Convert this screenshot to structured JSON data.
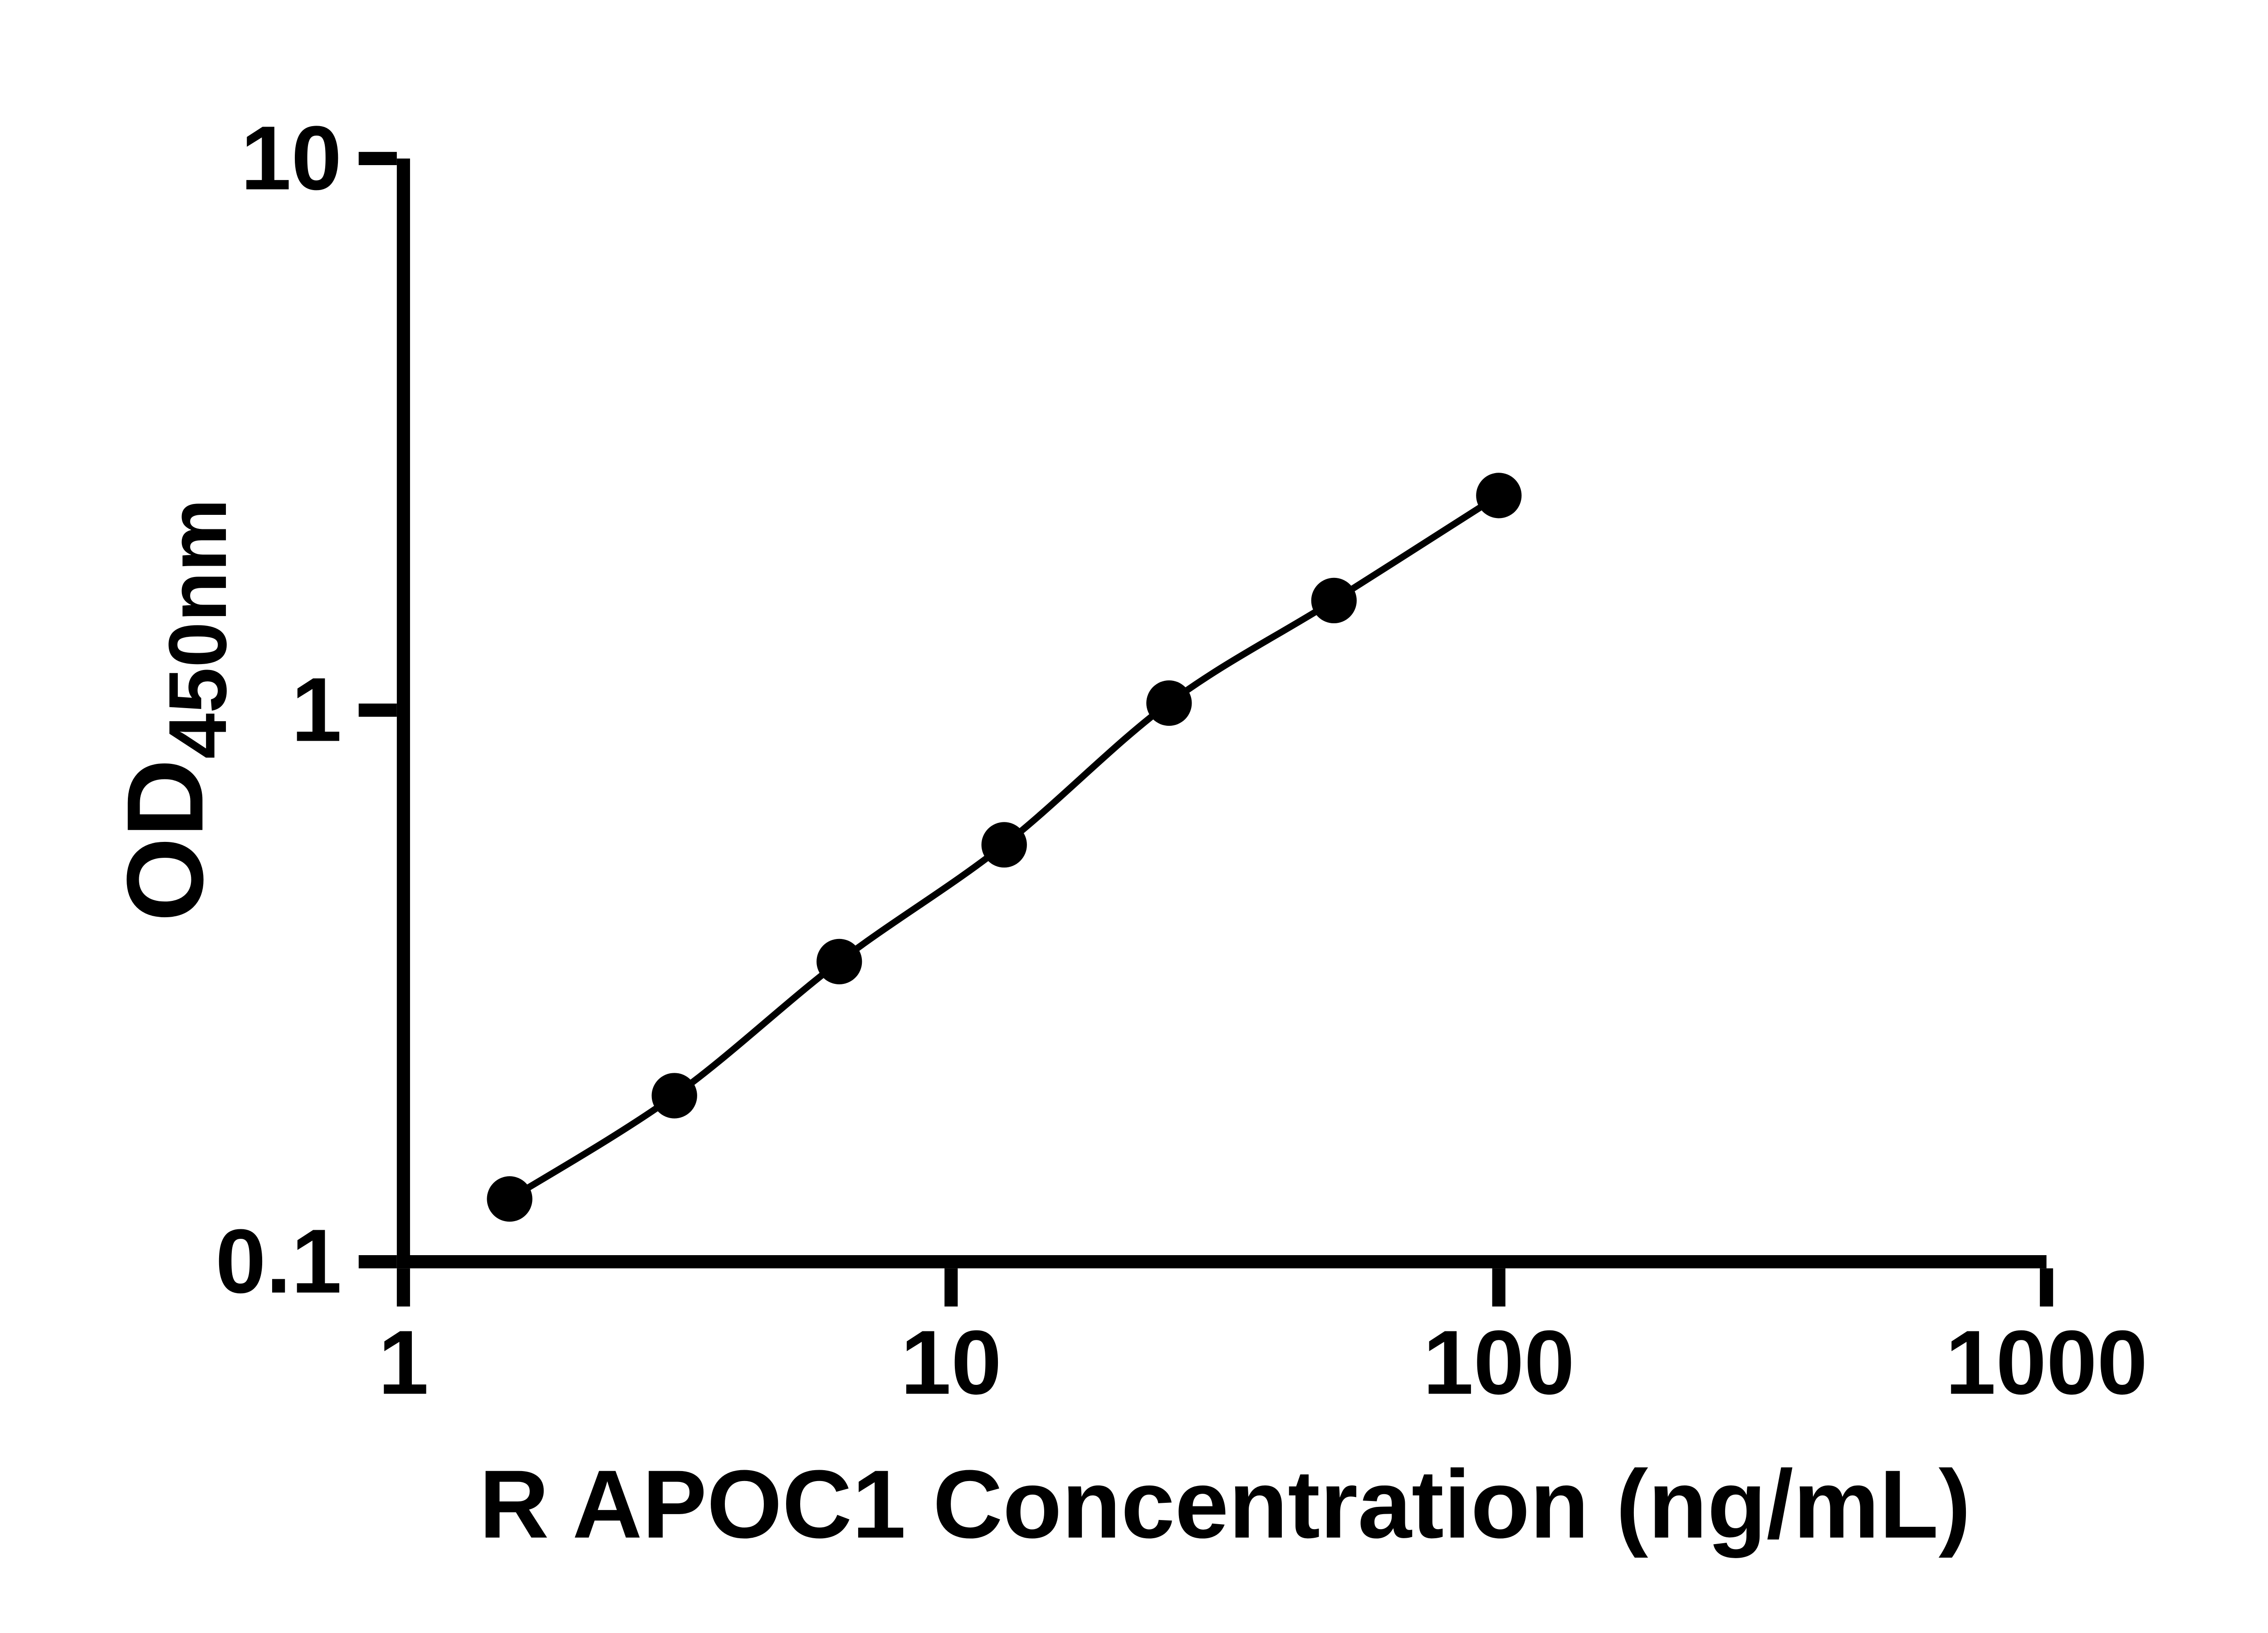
{
  "chart_data": {
    "type": "scatter",
    "title": "",
    "xlabel": "R APOC1 Concentration (ng/mL)",
    "ylabel": "OD450nm",
    "ylabel_main": "OD",
    "ylabel_sub": "450nm",
    "x_scale": "log10",
    "y_scale": "log10",
    "xlim": [
      1,
      1000
    ],
    "ylim": [
      0.1,
      10
    ],
    "x_ticks": [
      1,
      10,
      100,
      1000
    ],
    "x_tick_labels": [
      "1",
      "10",
      "100",
      "1000"
    ],
    "y_ticks": [
      0.1,
      1,
      10
    ],
    "y_tick_labels": [
      "0.1",
      "1",
      "10"
    ],
    "grid": false,
    "legend": "none",
    "axis_color": "#000000",
    "text_color": "#000000",
    "line_color": "#000000",
    "marker_color": "#000000",
    "marker_shape": "circle",
    "points": [
      {
        "x": 1.563,
        "y": 0.13
      },
      {
        "x": 3.125,
        "y": 0.2
      },
      {
        "x": 6.25,
        "y": 0.35
      },
      {
        "x": 12.5,
        "y": 0.57
      },
      {
        "x": 25,
        "y": 1.03
      },
      {
        "x": 50,
        "y": 1.58
      },
      {
        "x": 100,
        "y": 2.45
      }
    ]
  }
}
